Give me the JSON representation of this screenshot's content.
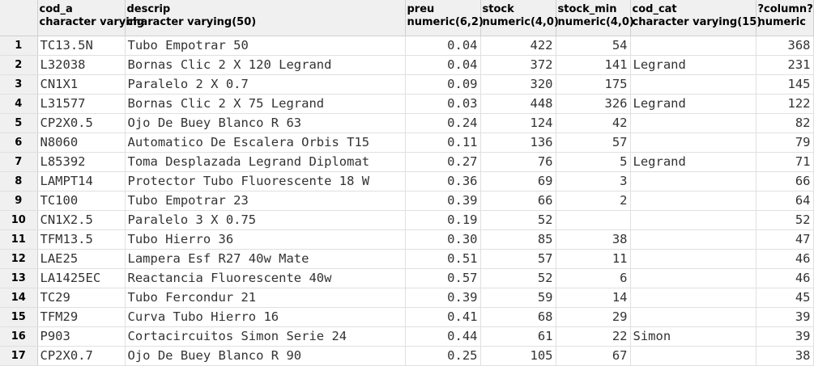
{
  "columns": [
    {
      "name": "cod_a",
      "type": "character varying"
    },
    {
      "name": "descrip",
      "type": "character varying(50)"
    },
    {
      "name": "preu",
      "type": "numeric(6,2)"
    },
    {
      "name": "stock",
      "type": "numeric(4,0)"
    },
    {
      "name": "stock_min",
      "type": "numeric(4,0)"
    },
    {
      "name": "cod_cat",
      "type": "character varying(15)"
    },
    {
      "name": "?column?",
      "type": "numeric"
    }
  ],
  "rows": [
    {
      "n": "1",
      "cod_a": "TC13.5N",
      "descrip": "Tubo Empotrar   50",
      "preu": "0.04",
      "stock": "422",
      "stock_min": "54",
      "cod_cat": "",
      "col": "368"
    },
    {
      "n": "2",
      "cod_a": "L32038",
      "descrip": "Bornas Clic 2 X 120 Legrand",
      "preu": "0.04",
      "stock": "372",
      "stock_min": "141",
      "cod_cat": "Legrand",
      "col": "231"
    },
    {
      "n": "3",
      "cod_a": "CN1X1",
      "descrip": "Paralelo   2 X 0.7",
      "preu": "0.09",
      "stock": "320",
      "stock_min": "175",
      "cod_cat": "",
      "col": "145"
    },
    {
      "n": "4",
      "cod_a": "L31577",
      "descrip": "Bornas Clic 2 X 75 Legrand",
      "preu": "0.03",
      "stock": "448",
      "stock_min": "326",
      "cod_cat": "Legrand",
      "col": "122"
    },
    {
      "n": "5",
      "cod_a": "CP2X0.5",
      "descrip": "Ojo De Buey Blanco R 63",
      "preu": "0.24",
      "stock": "124",
      "stock_min": "42",
      "cod_cat": "",
      "col": "82"
    },
    {
      "n": "6",
      "cod_a": "N8060",
      "descrip": "Automatico De Escalera Orbis T15",
      "preu": "0.11",
      "stock": "136",
      "stock_min": "57",
      "cod_cat": "",
      "col": "79"
    },
    {
      "n": "7",
      "cod_a": "L85392",
      "descrip": "Toma Desplazada Legrand Diplomat",
      "preu": "0.27",
      "stock": "76",
      "stock_min": "5",
      "cod_cat": "Legrand",
      "col": "71"
    },
    {
      "n": "8",
      "cod_a": "LAMPT14",
      "descrip": "Protector Tubo Fluorescente 18 W",
      "preu": "0.36",
      "stock": "69",
      "stock_min": "3",
      "cod_cat": "",
      "col": "66"
    },
    {
      "n": "9",
      "cod_a": "TC100",
      "descrip": "Tubo Empotrar   23",
      "preu": "0.39",
      "stock": "66",
      "stock_min": "2",
      "cod_cat": "",
      "col": "64"
    },
    {
      "n": "10",
      "cod_a": "CN1X2.5",
      "descrip": "Paralelo   3 X 0.75",
      "preu": "0.19",
      "stock": "52",
      "stock_min": "",
      "cod_cat": "",
      "col": "52"
    },
    {
      "n": "11",
      "cod_a": "TFM13.5",
      "descrip": "Tubo Hierro   36",
      "preu": "0.30",
      "stock": "85",
      "stock_min": "38",
      "cod_cat": "",
      "col": "47"
    },
    {
      "n": "12",
      "cod_a": "LAE25",
      "descrip": "Lampera Esf R27 40w Mate",
      "preu": "0.51",
      "stock": "57",
      "stock_min": "11",
      "cod_cat": "",
      "col": "46"
    },
    {
      "n": "13",
      "cod_a": "LA1425EC",
      "descrip": "Reactancia Fluorescente 40w",
      "preu": "0.57",
      "stock": "52",
      "stock_min": "6",
      "cod_cat": "",
      "col": "46"
    },
    {
      "n": "14",
      "cod_a": "TC29",
      "descrip": "Tubo Fercondur   21",
      "preu": "0.39",
      "stock": "59",
      "stock_min": "14",
      "cod_cat": "",
      "col": "45"
    },
    {
      "n": "15",
      "cod_a": "TFM29",
      "descrip": "Curva Tubo Hierro   16",
      "preu": "0.41",
      "stock": "68",
      "stock_min": "29",
      "cod_cat": "",
      "col": "39"
    },
    {
      "n": "16",
      "cod_a": "P903",
      "descrip": "Cortacircuitos Simon Serie 24",
      "preu": "0.44",
      "stock": "61",
      "stock_min": "22",
      "cod_cat": "Simon",
      "col": "39"
    },
    {
      "n": "17",
      "cod_a": "CP2X0.7",
      "descrip": "Ojo De Buey Blanco R 90",
      "preu": "0.25",
      "stock": "105",
      "stock_min": "67",
      "cod_cat": "",
      "col": "38"
    }
  ]
}
